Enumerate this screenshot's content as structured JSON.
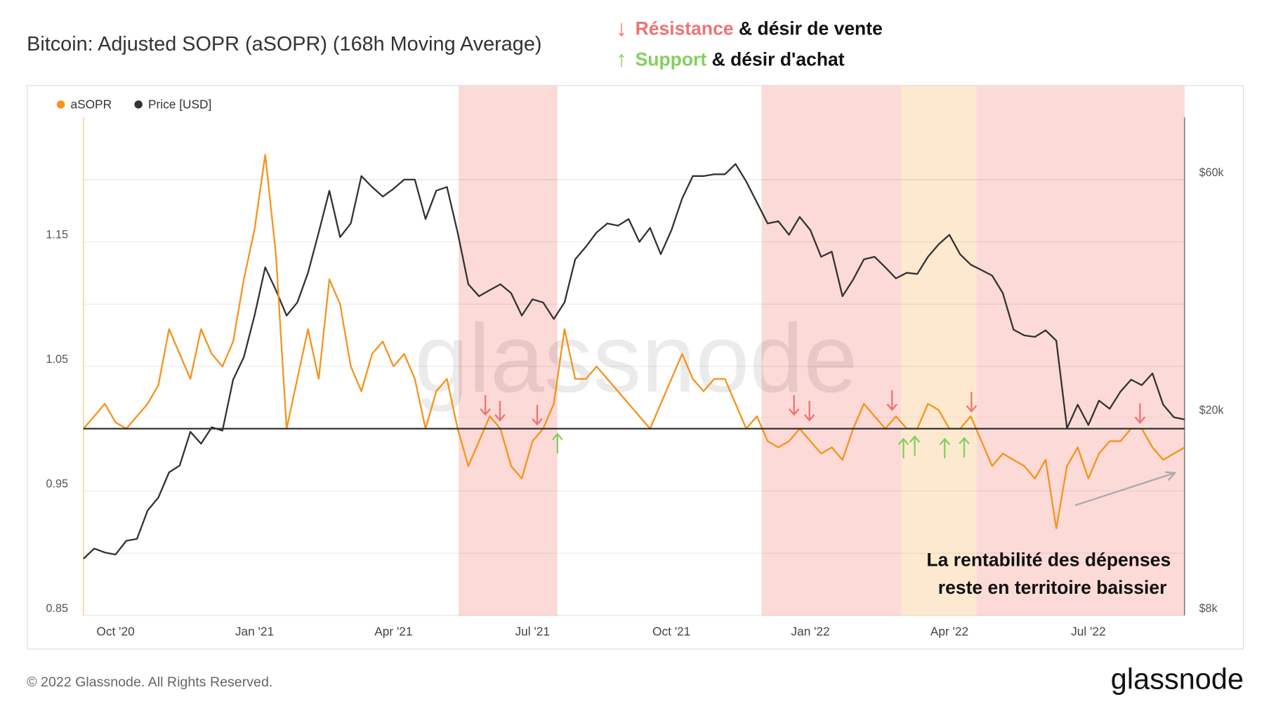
{
  "title": "Bitcoin: Adjusted SOPR (aSOPR) (168h Moving Average)",
  "notes": [
    {
      "arrow": "↓",
      "keyword": "Résistance",
      "rest": " & désir de vente",
      "color": "#f07373"
    },
    {
      "arrow": "↑",
      "keyword": "Support",
      "rest": " & désir d'achat",
      "color": "#85d05e"
    }
  ],
  "chart_data": {
    "type": "line",
    "categories": [
      null,
      null,
      null,
      "Oct '20",
      null,
      null,
      null,
      null,
      null,
      null,
      null,
      null,
      null,
      null,
      null,
      null,
      "Jan '21",
      null,
      null,
      null,
      null,
      null,
      null,
      null,
      null,
      null,
      null,
      null,
      null,
      "Apr '21",
      null,
      null,
      null,
      null,
      null,
      null,
      null,
      null,
      null,
      null,
      null,
      null,
      "Jul '21",
      null,
      null,
      null,
      null,
      null,
      null,
      null,
      null,
      null,
      null,
      null,
      null,
      "Oct '21",
      null,
      null,
      null,
      null,
      null,
      null,
      null,
      null,
      null,
      null,
      null,
      null,
      "Jan '22",
      null,
      null,
      null,
      null,
      null,
      null,
      null,
      null,
      null,
      null,
      null,
      null,
      "Apr '22",
      null,
      null,
      null,
      null,
      null,
      null,
      null,
      null,
      null,
      null,
      null,
      null,
      "Jul '22",
      null,
      null,
      null,
      null,
      null,
      null,
      null,
      null,
      null
    ],
    "series": [
      {
        "name": "aSOPR",
        "color": "#f7931a",
        "axis": "y",
        "values": [
          1.0,
          1.01,
          1.02,
          1.005,
          1.0,
          1.01,
          1.02,
          1.035,
          1.08,
          1.06,
          1.04,
          1.08,
          1.06,
          1.05,
          1.07,
          1.12,
          1.16,
          1.22,
          1.14,
          1.0,
          1.04,
          1.08,
          1.04,
          1.12,
          1.1,
          1.05,
          1.03,
          1.06,
          1.07,
          1.05,
          1.06,
          1.04,
          1.0,
          1.03,
          1.04,
          1.0,
          0.97,
          0.99,
          1.01,
          1.0,
          0.97,
          0.96,
          0.99,
          1.0,
          1.02,
          1.08,
          1.04,
          1.04,
          1.05,
          1.04,
          1.03,
          1.02,
          1.01,
          1.0,
          1.02,
          1.04,
          1.06,
          1.04,
          1.03,
          1.04,
          1.04,
          1.02,
          1.0,
          1.01,
          0.99,
          0.985,
          0.99,
          1.0,
          0.99,
          0.98,
          0.985,
          0.975,
          1.0,
          1.02,
          1.01,
          1.0,
          1.01,
          1.0,
          1.0,
          1.02,
          1.015,
          1.0,
          1.0,
          1.01,
          0.99,
          0.97,
          0.98,
          0.975,
          0.97,
          0.96,
          0.975,
          0.92,
          0.97,
          0.985,
          0.96,
          0.98,
          0.99,
          0.99,
          1.0,
          1.0,
          0.985,
          0.975,
          0.98,
          0.985
        ]
      },
      {
        "name": "Price [USD]",
        "color": "#333333",
        "axis": "y2",
        "values": [
          10400,
          10900,
          10700,
          10600,
          11300,
          11400,
          13000,
          13800,
          15500,
          16000,
          18700,
          17700,
          19100,
          18800,
          23800,
          26400,
          32000,
          40000,
          36000,
          32000,
          34000,
          39000,
          47000,
          57000,
          46000,
          49000,
          61000,
          58000,
          55500,
          57500,
          60000,
          60000,
          50000,
          57000,
          58000,
          47000,
          37000,
          35000,
          36000,
          37000,
          35500,
          32000,
          34500,
          34000,
          31500,
          34000,
          41500,
          44000,
          47000,
          49000,
          48500,
          50000,
          45000,
          48000,
          42500,
          47500,
          55000,
          61000,
          61000,
          61500,
          61500,
          64500,
          59500,
          54000,
          49000,
          49500,
          46500,
          50500,
          47500,
          42000,
          43000,
          35000,
          37800,
          41500,
          42000,
          40000,
          38000,
          39000,
          38800,
          42000,
          44500,
          46500,
          42500,
          40500,
          39500,
          38500,
          35500,
          30000,
          29200,
          29000,
          29900,
          28500,
          19000,
          21200,
          19300,
          21600,
          20800,
          22500,
          23800,
          23200,
          24500,
          21200,
          20000,
          19800
        ]
      }
    ],
    "ylim": [
      0.85,
      1.25
    ],
    "yticks": [
      0.85,
      0.95,
      1.05,
      1.15
    ],
    "ygrid": [
      0.9,
      1.0,
      1.1,
      1.2
    ],
    "y2lim": [
      8000,
      80000
    ],
    "y2scale": "log",
    "y2ticks": [
      {
        "value": 8000,
        "label": "$8k"
      },
      {
        "value": 20000,
        "label": "$20k"
      },
      {
        "value": 60000,
        "label": "$60k"
      }
    ],
    "hline": 1,
    "grid": true,
    "annotation": [
      "La rentabilité des dépenses",
      "reste en territoire baissier"
    ]
  },
  "watermark": "glassnode",
  "footer": "© 2022 Glassnode. All Rights Reserved.",
  "logo": "glassnode"
}
